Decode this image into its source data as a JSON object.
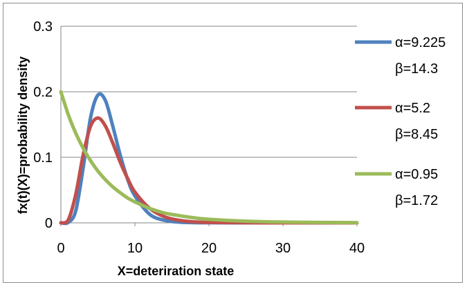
{
  "chart_data": {
    "type": "line",
    "title": "",
    "xlabel": "X=deteriration state",
    "ylabel": "fx(t)(X)=probability density",
    "xlim": [
      0,
      40
    ],
    "ylim": [
      0,
      0.3
    ],
    "xticks": [
      "0",
      "10",
      "20",
      "30",
      "40"
    ],
    "yticks": [
      "0",
      "0.1",
      "0.2",
      "0.3"
    ],
    "grid": "horizontal",
    "legend_position": "right",
    "x": [
      0,
      1,
      2,
      3,
      4,
      5,
      6,
      7,
      8,
      9,
      10,
      12,
      14,
      16,
      18,
      20,
      25,
      30,
      35,
      40
    ],
    "series": [
      {
        "name_line1": "α=9.225",
        "name_line2": "β=14.3",
        "color": "#4f81bd",
        "values": [
          0,
          0.0006,
          0.018,
          0.083,
          0.16,
          0.195,
          0.187,
          0.148,
          0.104,
          0.067,
          0.041,
          0.013,
          0.0038,
          0.001,
          0.0003,
          0.0001,
          0,
          0,
          0,
          0
        ]
      },
      {
        "name_line1": "α=5.2",
        "name_line2": "β=8.45",
        "color": "#c0504d",
        "values": [
          0,
          0.0046,
          0.043,
          0.103,
          0.147,
          0.16,
          0.148,
          0.122,
          0.093,
          0.068,
          0.047,
          0.022,
          0.0093,
          0.0038,
          0.0015,
          0.0006,
          0.0001,
          0,
          0,
          0
        ]
      },
      {
        "name_line1": "α=0.95",
        "name_line2": "β=1.72",
        "color": "#9bbb59",
        "values": [
          0.2,
          0.165,
          0.137,
          0.114,
          0.095,
          0.079,
          0.066,
          0.055,
          0.046,
          0.038,
          0.032,
          0.022,
          0.015,
          0.011,
          0.0077,
          0.0054,
          0.0025,
          0.0012,
          0.0006,
          0.0003
        ]
      }
    ]
  }
}
